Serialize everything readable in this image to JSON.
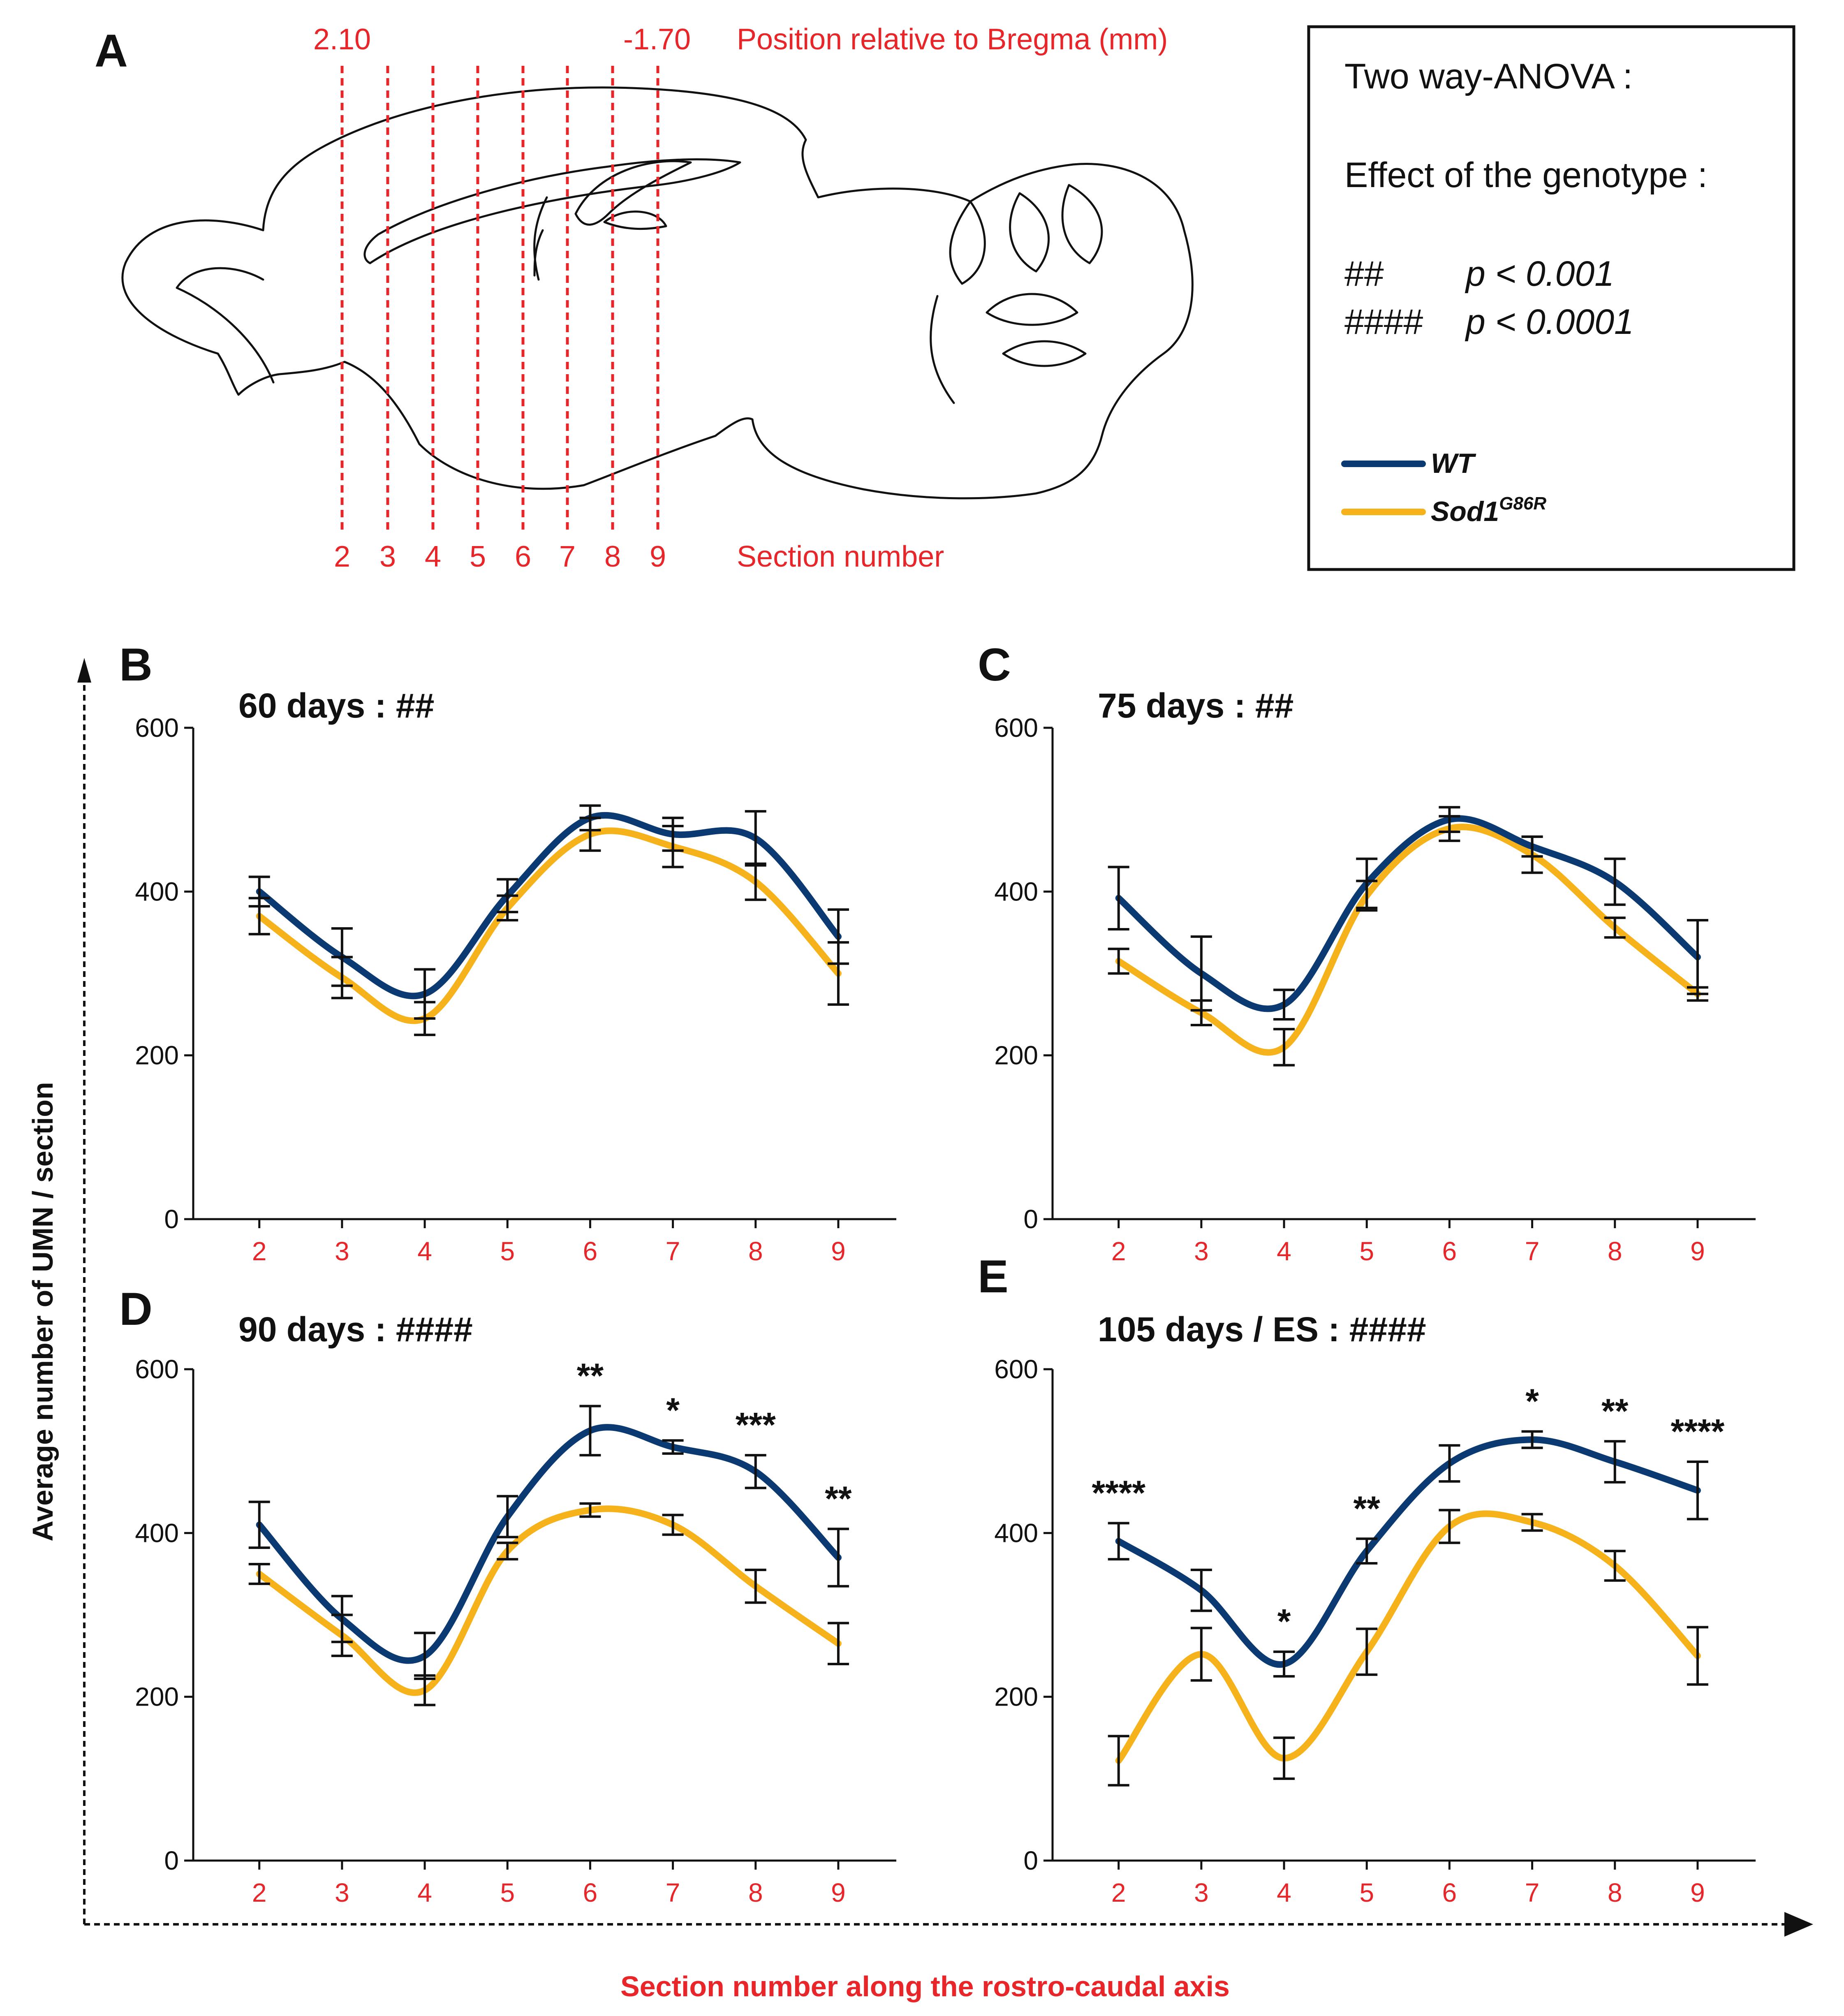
{
  "figure": {
    "panel_labels": [
      "A",
      "B",
      "C",
      "D",
      "E"
    ],
    "y_axis_label": "Average number of UMN / section",
    "x_axis_label": "Section number along the rostro-caudal axis",
    "colors": {
      "wt": "#0b3a73",
      "mutant": "#f6b21a",
      "red": "#e8262a",
      "black": "#111111"
    }
  },
  "brain": {
    "bregma_left": "2.10",
    "bregma_right": "-1.70",
    "bregma_caption": "Position relative to Bregma (mm)",
    "section_numbers": [
      "2",
      "3",
      "4",
      "5",
      "6",
      "7",
      "8",
      "9"
    ],
    "section_caption": "Section number"
  },
  "legend": {
    "title": "Two way-ANOVA :",
    "subtitle": "Effect of the genotype :",
    "rows": [
      {
        "symbol": "##",
        "text": "p < 0.001"
      },
      {
        "symbol": "####",
        "text": "p < 0.0001"
      }
    ],
    "series": [
      {
        "name": "WT",
        "color": "#0b3a73"
      },
      {
        "name": "Sod1",
        "sup": "G86R",
        "color": "#f6b21a"
      }
    ]
  },
  "chart_data": [
    {
      "type": "line",
      "panel": "B",
      "title": "60 days : ##",
      "categories": [
        "2",
        "3",
        "4",
        "5",
        "6",
        "7",
        "8",
        "9"
      ],
      "yticks": [
        "0",
        "200",
        "400",
        "600"
      ],
      "ylim": [
        0,
        600
      ],
      "series": [
        {
          "name": "WT",
          "values": [
            400,
            320,
            275,
            395,
            490,
            470,
            465,
            345
          ],
          "errors": [
            18,
            35,
            30,
            20,
            15,
            20,
            33,
            33
          ]
        },
        {
          "name": "Sod1G86R",
          "values": [
            370,
            295,
            245,
            380,
            470,
            455,
            412,
            300
          ],
          "errors": [
            22,
            25,
            20,
            15,
            20,
            25,
            22,
            38
          ]
        }
      ],
      "significance": []
    },
    {
      "type": "line",
      "panel": "C",
      "title": "75 days : ##",
      "categories": [
        "2",
        "3",
        "4",
        "5",
        "6",
        "7",
        "8",
        "9"
      ],
      "yticks": [
        "0",
        "200",
        "400",
        "600"
      ],
      "ylim": [
        0,
        600
      ],
      "series": [
        {
          "name": "WT",
          "values": [
            392,
            300,
            262,
            410,
            488,
            455,
            412,
            320
          ],
          "errors": [
            38,
            45,
            18,
            30,
            15,
            12,
            28,
            45
          ]
        },
        {
          "name": "Sod1G86R",
          "values": [
            315,
            252,
            210,
            395,
            477,
            445,
            356,
            275
          ],
          "errors": [
            15,
            15,
            22,
            18,
            15,
            22,
            12,
            8
          ]
        }
      ],
      "significance": []
    },
    {
      "type": "line",
      "panel": "D",
      "title": "90 days : ####",
      "categories": [
        "2",
        "3",
        "4",
        "5",
        "6",
        "7",
        "8",
        "9"
      ],
      "yticks": [
        "0",
        "200",
        "400",
        "600"
      ],
      "ylim": [
        0,
        600
      ],
      "series": [
        {
          "name": "WT",
          "values": [
            410,
            295,
            250,
            420,
            525,
            505,
            475,
            370
          ],
          "errors": [
            28,
            28,
            28,
            25,
            30,
            8,
            20,
            35
          ]
        },
        {
          "name": "Sod1G86R",
          "values": [
            350,
            275,
            208,
            378,
            428,
            410,
            335,
            265
          ],
          "errors": [
            12,
            25,
            18,
            10,
            8,
            12,
            20,
            25
          ]
        }
      ],
      "significance": [
        "",
        "",
        "",
        "",
        "**",
        "*",
        "***",
        "**"
      ]
    },
    {
      "type": "line",
      "panel": "E",
      "title": "105 days / ES : ####",
      "categories": [
        "2",
        "3",
        "4",
        "5",
        "6",
        "7",
        "8",
        "9"
      ],
      "yticks": [
        "0",
        "200",
        "400",
        "600"
      ],
      "ylim": [
        0,
        600
      ],
      "series": [
        {
          "name": "WT",
          "values": [
            390,
            330,
            240,
            378,
            485,
            514,
            487,
            452
          ],
          "errors": [
            22,
            25,
            15,
            15,
            22,
            10,
            25,
            35
          ]
        },
        {
          "name": "Sod1G86R",
          "values": [
            122,
            252,
            125,
            255,
            408,
            413,
            360,
            250
          ],
          "errors": [
            30,
            32,
            25,
            28,
            20,
            10,
            18,
            35
          ]
        }
      ],
      "significance": [
        "****",
        "",
        "*",
        "**",
        "",
        "*",
        "**",
        "****"
      ]
    }
  ]
}
